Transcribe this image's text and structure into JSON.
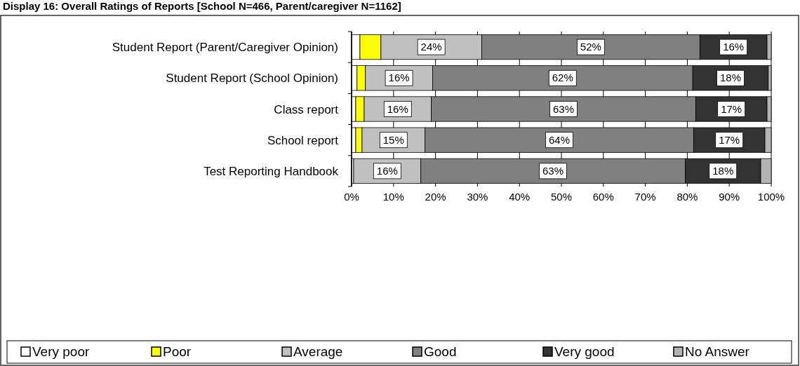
{
  "chart_data": {
    "type": "bar",
    "orientation": "horizontal",
    "stacked": true,
    "title": "Display 16: Overall Ratings of Reports [School N=466, Parent/caregiver N=1162]",
    "categories": [
      "Student Report (Parent/Caregiver Opinion)",
      "Student Report (School Opinion)",
      "Class report",
      "School report",
      "Test Reporting Handbook"
    ],
    "series": [
      {
        "name": "Very poor",
        "color": "#ffffff",
        "values": [
          2,
          1.3,
          1,
          1,
          0.5
        ]
      },
      {
        "name": "Poor",
        "color": "#ffff00",
        "values": [
          5,
          2,
          2,
          1.5,
          0
        ]
      },
      {
        "name": "Average",
        "color": "#c0c0c0",
        "values": [
          24,
          16,
          16,
          15,
          16
        ],
        "value_labels": [
          "24%",
          "16%",
          "16%",
          "15%",
          "16%"
        ]
      },
      {
        "name": "Good",
        "color": "#808080",
        "values": [
          52,
          62,
          63,
          64,
          63
        ],
        "value_labels": [
          "52%",
          "62%",
          "63%",
          "64%",
          "63%"
        ]
      },
      {
        "name": "Very good",
        "color": "#333333",
        "values": [
          16,
          18,
          17,
          17,
          18
        ],
        "value_labels": [
          "16%",
          "18%",
          "17%",
          "17%",
          "18%"
        ]
      },
      {
        "name": "No Answer",
        "color": "#b4b4b4",
        "values": [
          1,
          0.7,
          1,
          1.5,
          2.5
        ]
      }
    ],
    "xlim": [
      0,
      100
    ],
    "xticks": [
      {
        "value": 0,
        "label": "0%"
      },
      {
        "value": 10,
        "label": "10%"
      },
      {
        "value": 20,
        "label": "20%"
      },
      {
        "value": 30,
        "label": "30%"
      },
      {
        "value": 40,
        "label": "40%"
      },
      {
        "value": 50,
        "label": "50%"
      },
      {
        "value": 60,
        "label": "60%"
      },
      {
        "value": 70,
        "label": "70%"
      },
      {
        "value": 80,
        "label": "80%"
      },
      {
        "value": 90,
        "label": "90%"
      },
      {
        "value": 100,
        "label": "100%"
      }
    ],
    "grid": "x",
    "legend": "bottom"
  }
}
